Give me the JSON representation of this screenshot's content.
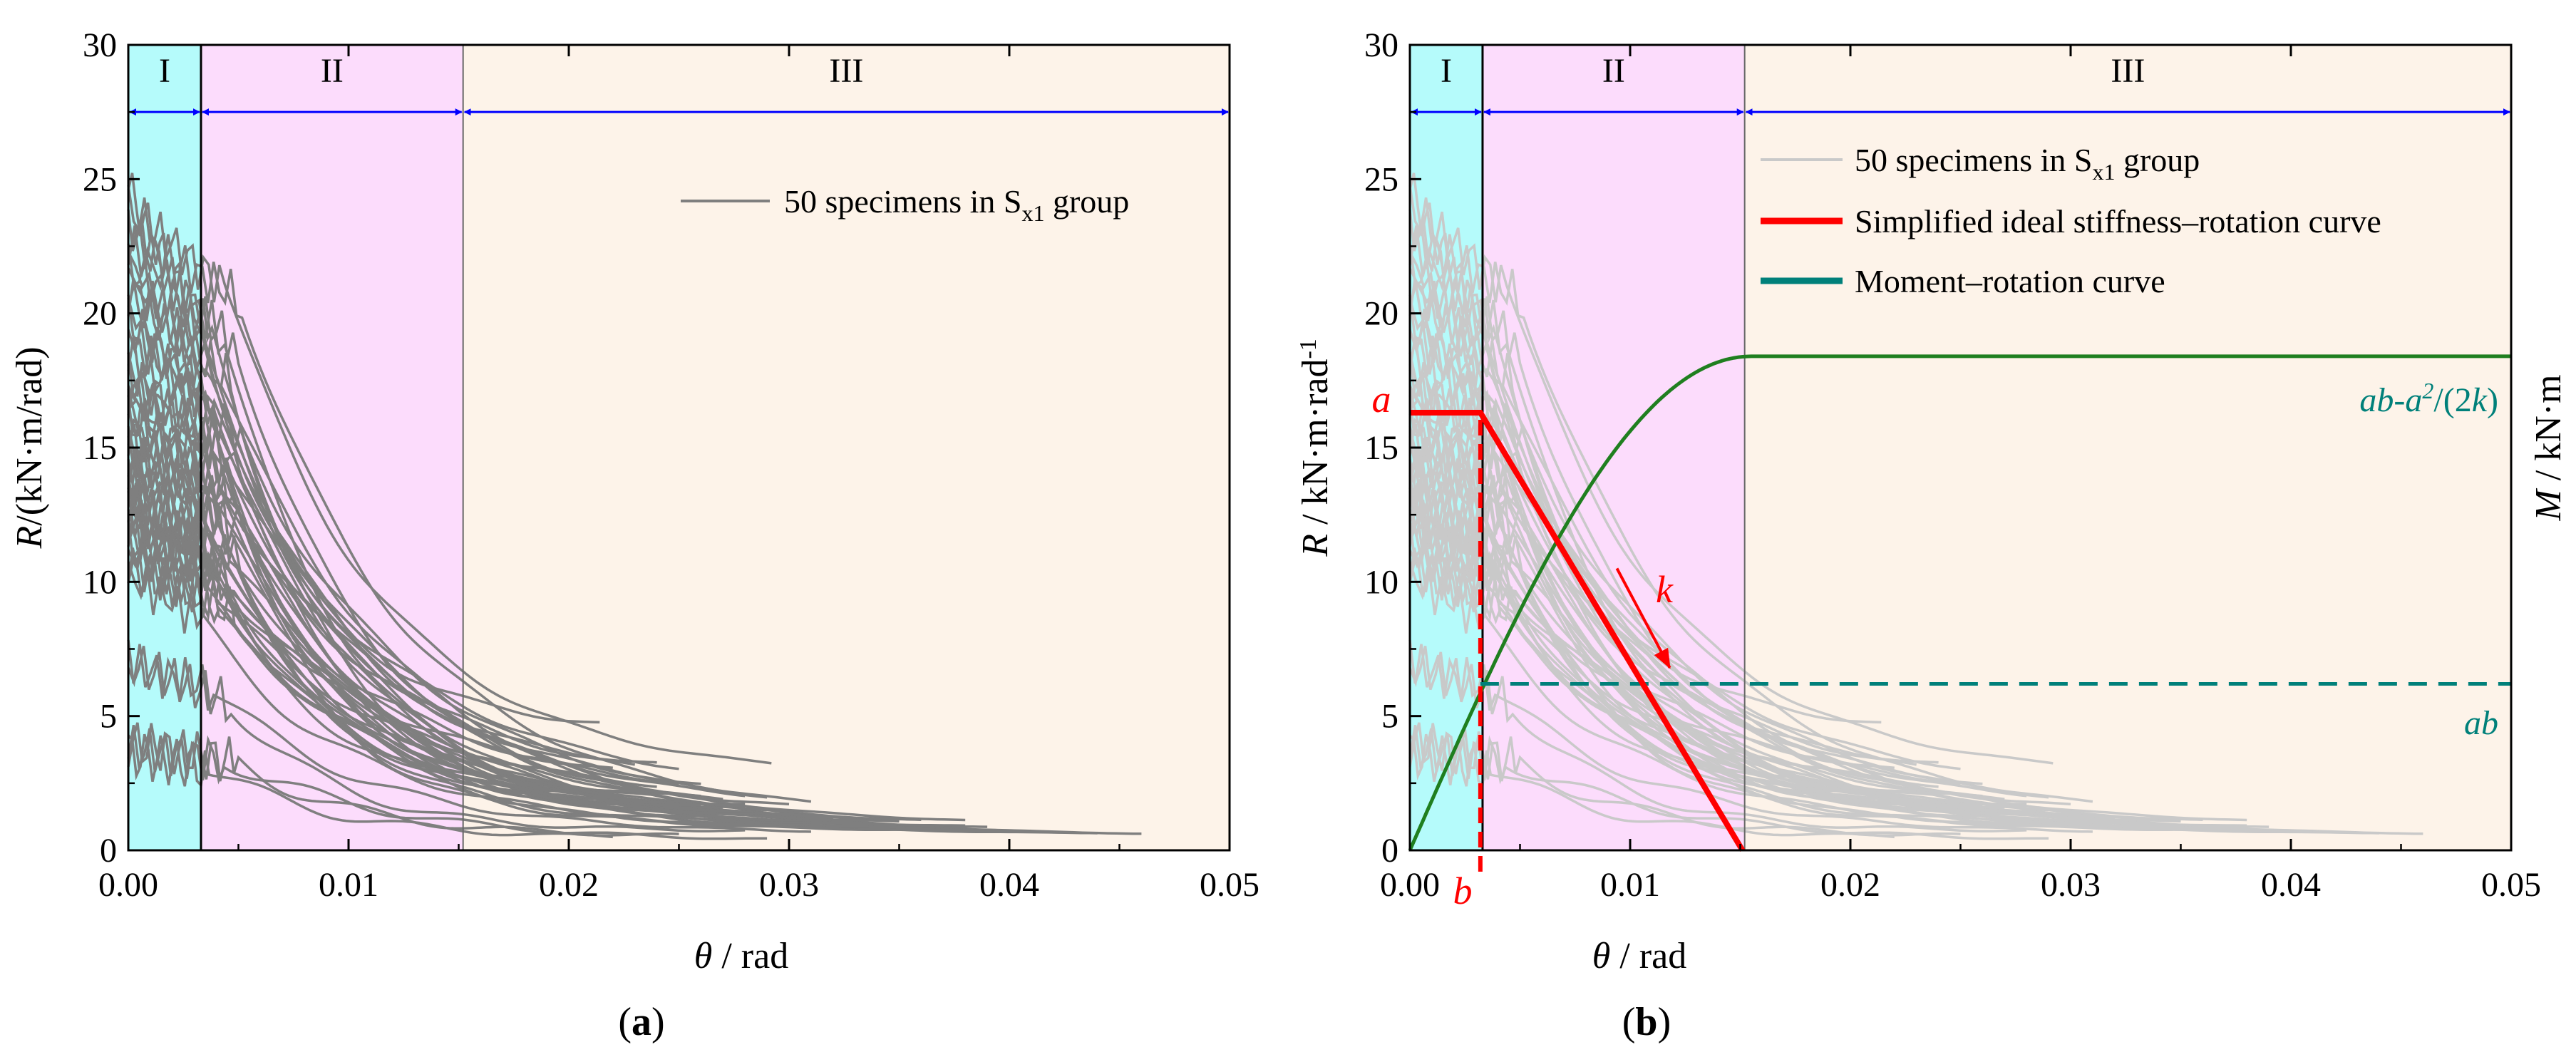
{
  "figure": {
    "panels": [
      {
        "id": "a",
        "label": "(a)",
        "label_open": "(",
        "label_letter": "a",
        "label_close": ")"
      },
      {
        "id": "b",
        "label": "(b)",
        "label_open": "(",
        "label_letter": "b",
        "label_close": ")"
      }
    ],
    "legend_a": {
      "prefix": "50 specimens in S",
      "sub": "x1",
      "suffix": " group"
    },
    "legend_b": [
      {
        "prefix": "50 specimens in S",
        "sub": "x1",
        "suffix": " group",
        "color": "#c9c9c9"
      },
      {
        "text": "Simplified ideal stiffness–rotation curve",
        "color": "#ff0000"
      },
      {
        "text": "Moment–rotation curve",
        "color": "#00807a"
      }
    ],
    "annotations_b": {
      "a": "a",
      "b": "b",
      "k": "k",
      "ab_expr": {
        "p1": "ab-a",
        "sup": "2",
        "p2": "/(2",
        "k": "k",
        "p3": ")"
      },
      "ab": "ab"
    }
  },
  "chart_data": [
    {
      "type": "line",
      "panel": "a",
      "title": "",
      "xlabel": {
        "symbol": "θ",
        "unit": " / rad"
      },
      "ylabel": {
        "symbol": "R",
        "unit": "/(kN·m/rad)"
      },
      "xlim": [
        0,
        0.05
      ],
      "ylim": [
        0,
        30
      ],
      "xticks": [
        0,
        0.01,
        0.02,
        0.03,
        0.04,
        0.05
      ],
      "xtick_labels": [
        "0.00",
        "0.01",
        "0.02",
        "0.03",
        "0.04",
        "0.05"
      ],
      "yticks": [
        0,
        5,
        10,
        15,
        20,
        25,
        30
      ],
      "ytick_labels": [
        "0",
        "5",
        "10",
        "15",
        "20",
        "25",
        "30"
      ],
      "regions": [
        {
          "label": "I",
          "x0": 0,
          "x1": 0.0033,
          "color": "#b5fbfb"
        },
        {
          "label": "II",
          "x0": 0.0033,
          "x1": 0.0152,
          "color": "#fcdcfc"
        },
        {
          "label": "III",
          "x0": 0.0152,
          "x1": 0.05,
          "color": "#fdf3e9"
        }
      ],
      "region_arrow_y": 27.5,
      "series_summary": {
        "name": "50 specimens in Sx1 group",
        "count": 50,
        "color": "#7f7f7f"
      },
      "series": [
        {
          "r0": 24.6,
          "x_end": 0.0214,
          "tail": 4.4
        },
        {
          "r0": 23.9,
          "x_end": 0.0292,
          "tail": 2.7
        },
        {
          "r0": 23.4,
          "x_end": 0.024,
          "tail": 2.9
        },
        {
          "r0": 22.9,
          "x_end": 0.031,
          "tail": 1.2
        },
        {
          "r0": 22.6,
          "x_end": 0.035,
          "tail": 1.0
        },
        {
          "r0": 22.1,
          "x_end": 0.038,
          "tail": 0.9
        },
        {
          "r0": 21.7,
          "x_end": 0.03,
          "tail": 1.4
        },
        {
          "r0": 21.4,
          "x_end": 0.046,
          "tail": 0.5
        },
        {
          "r0": 21.0,
          "x_end": 0.033,
          "tail": 1.0
        },
        {
          "r0": 20.6,
          "x_end": 0.028,
          "tail": 1.6
        },
        {
          "r0": 20.2,
          "x_end": 0.042,
          "tail": 0.6
        },
        {
          "r0": 19.8,
          "x_end": 0.026,
          "tail": 1.8
        },
        {
          "r0": 19.3,
          "x_end": 0.036,
          "tail": 0.9
        },
        {
          "r0": 18.9,
          "x_end": 0.031,
          "tail": 1.2
        },
        {
          "r0": 18.4,
          "x_end": 0.029,
          "tail": 1.3
        },
        {
          "r0": 18.0,
          "x_end": 0.04,
          "tail": 0.7
        },
        {
          "r0": 17.7,
          "x_end": 0.025,
          "tail": 2.0
        },
        {
          "r0": 17.4,
          "x_end": 0.034,
          "tail": 1.0
        },
        {
          "r0": 17.1,
          "x_end": 0.027,
          "tail": 1.5
        },
        {
          "r0": 16.8,
          "x_end": 0.044,
          "tail": 0.6
        },
        {
          "r0": 16.5,
          "x_end": 0.03,
          "tail": 1.2
        },
        {
          "r0": 16.2,
          "x_end": 0.023,
          "tail": 2.2
        },
        {
          "r0": 15.9,
          "x_end": 0.037,
          "tail": 0.8
        },
        {
          "r0": 15.6,
          "x_end": 0.028,
          "tail": 1.4
        },
        {
          "r0": 15.3,
          "x_end": 0.032,
          "tail": 1.1
        },
        {
          "r0": 15.0,
          "x_end": 0.026,
          "tail": 1.6
        },
        {
          "r0": 14.8,
          "x_end": 0.039,
          "tail": 0.8
        },
        {
          "r0": 14.5,
          "x_end": 0.024,
          "tail": 1.9
        },
        {
          "r0": 14.2,
          "x_end": 0.035,
          "tail": 0.9
        },
        {
          "r0": 14.0,
          "x_end": 0.029,
          "tail": 1.3
        },
        {
          "r0": 13.7,
          "x_end": 0.022,
          "tail": 2.3
        },
        {
          "r0": 13.5,
          "x_end": 0.033,
          "tail": 1.0
        },
        {
          "r0": 13.2,
          "x_end": 0.027,
          "tail": 1.4
        },
        {
          "r0": 13.0,
          "x_end": 0.041,
          "tail": 0.7
        },
        {
          "r0": 12.8,
          "x_end": 0.025,
          "tail": 1.7
        },
        {
          "r0": 12.6,
          "x_end": 0.03,
          "tail": 1.2
        },
        {
          "r0": 12.4,
          "x_end": 0.036,
          "tail": 0.9
        },
        {
          "r0": 12.2,
          "x_end": 0.028,
          "tail": 1.3
        },
        {
          "r0": 12.0,
          "x_end": 0.023,
          "tail": 2.0
        },
        {
          "r0": 11.7,
          "x_end": 0.032,
          "tail": 1.0
        },
        {
          "r0": 11.4,
          "x_end": 0.026,
          "tail": 1.5
        },
        {
          "r0": 11.1,
          "x_end": 0.038,
          "tail": 0.8
        },
        {
          "r0": 10.8,
          "x_end": 0.029,
          "tail": 1.2
        },
        {
          "r0": 10.5,
          "x_end": 0.024,
          "tail": 1.7
        },
        {
          "r0": 10.2,
          "x_end": 0.034,
          "tail": 0.9
        },
        {
          "r0": 7.0,
          "x_end": 0.028,
          "tail": 0.7
        },
        {
          "r0": 6.9,
          "x_end": 0.031,
          "tail": 0.6
        },
        {
          "r0": 4.0,
          "x_end": 0.025,
          "tail": 0.5
        },
        {
          "r0": 3.8,
          "x_end": 0.029,
          "tail": 0.3
        },
        {
          "r0": 3.6,
          "x_end": 0.022,
          "tail": 0.4
        }
      ]
    },
    {
      "type": "line",
      "panel": "b",
      "title": "",
      "xlabel": {
        "symbol": "θ",
        "unit": " / rad"
      },
      "ylabel": {
        "symbol": "R",
        "unit": " / kN·m·rad",
        "sup": "-1"
      },
      "y2label": {
        "symbol": "M",
        "unit": " / kN·m"
      },
      "xlim": [
        0,
        0.05
      ],
      "ylim": [
        0,
        30
      ],
      "xticks": [
        0,
        0.01,
        0.02,
        0.03,
        0.04,
        0.05
      ],
      "xtick_labels": [
        "0.00",
        "0.01",
        "0.02",
        "0.03",
        "0.04",
        "0.05"
      ],
      "yticks": [
        0,
        5,
        10,
        15,
        20,
        25,
        30
      ],
      "ytick_labels": [
        "0",
        "5",
        "10",
        "15",
        "20",
        "25",
        "30"
      ],
      "regions": [
        {
          "label": "I",
          "x0": 0,
          "x1": 0.0033,
          "color": "#b5fbfb"
        },
        {
          "label": "II",
          "x0": 0.0033,
          "x1": 0.0152,
          "color": "#fcdcfc"
        },
        {
          "label": "III",
          "x0": 0.0152,
          "x1": 0.05,
          "color": "#fdf3e9"
        }
      ],
      "region_arrow_y": 27.5,
      "background_series": "50 specimens in Sx1 group (same data as panel a, light gray)",
      "simplified_stiffness_curve": {
        "name": "Simplified ideal stiffness–rotation curve",
        "color": "#ff0000",
        "x": [
          0.0,
          0.0032,
          0.0151
        ],
        "y": [
          16.3,
          16.3,
          0.0
        ],
        "a": 16.3,
        "b": 0.0032
      },
      "moment_rotation_curve": {
        "name": "Moment–rotation curve",
        "color": "#1f7f1f",
        "x": [
          0.0,
          0.0032,
          0.006,
          0.009,
          0.012,
          0.0151,
          0.05
        ],
        "y": [
          0.0,
          6.2,
          10.9,
          14.8,
          17.4,
          18.4,
          18.4
        ],
        "plateau_label": "ab-a²/(2k)"
      },
      "ab_line": {
        "y": 6.2,
        "x_start": 0.0032,
        "x_end": 0.05,
        "color": "#00807a",
        "style": "dashed",
        "label": "ab"
      },
      "b_marker": {
        "x": 0.0032,
        "y0": 0,
        "y1": 16.3,
        "style": "dashed",
        "color": "#ff0000",
        "label": "b"
      },
      "a_marker": {
        "y": 16.3,
        "label": "a"
      },
      "slope_arrow": {
        "label": "k",
        "from": [
          0.0094,
          10.5
        ],
        "to": [
          0.0118,
          6.8
        ],
        "color": "#ff0000"
      }
    }
  ]
}
